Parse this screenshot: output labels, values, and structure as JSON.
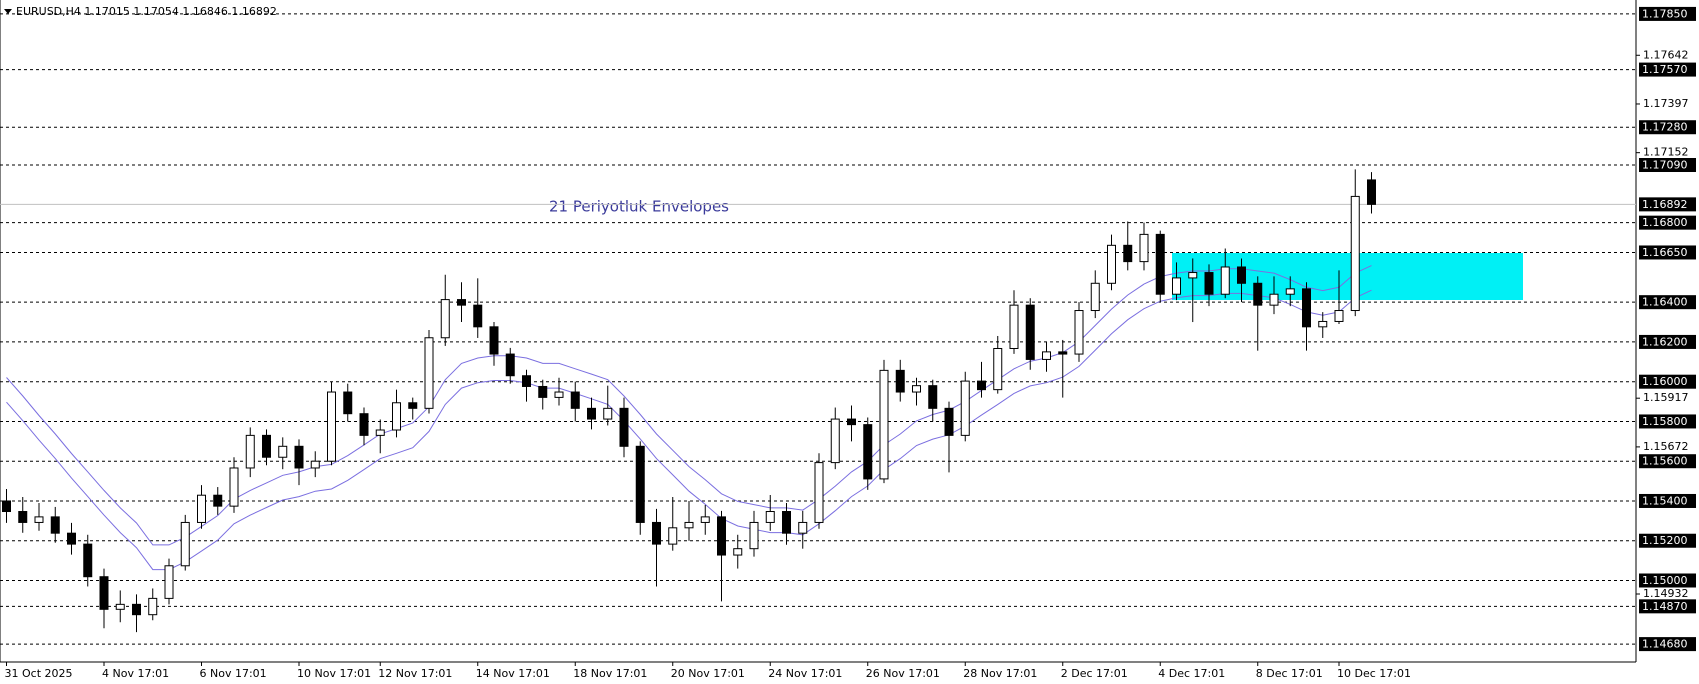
{
  "chart_data": {
    "type": "candlestick",
    "title": "EURUSD,H4  1.17015 1.17054 1.16846 1.16892",
    "annotation": "21 Periyotluk Envelopes",
    "categories": [
      "31 Oct 2025",
      null,
      null,
      null,
      null,
      null,
      "4 Nov 17:01",
      null,
      null,
      null,
      null,
      null,
      "6 Nov 17:01",
      null,
      null,
      null,
      null,
      null,
      "10 Nov 17:01",
      null,
      null,
      null,
      null,
      "12 Nov 17:01",
      null,
      null,
      null,
      null,
      null,
      "14 Nov 17:01",
      null,
      null,
      null,
      null,
      null,
      "18 Nov 17:01",
      null,
      null,
      null,
      null,
      null,
      "20 Nov 17:01",
      null,
      null,
      null,
      null,
      null,
      "24 Nov 17:01",
      null,
      null,
      null,
      null,
      null,
      "26 Nov 17:01",
      null,
      null,
      null,
      null,
      null,
      "28 Nov 17:01",
      null,
      null,
      null,
      null,
      null,
      "2 Dec 17:01",
      null,
      null,
      null,
      null,
      null,
      "4 Dec 17:01",
      null,
      null,
      null,
      null,
      null,
      "8 Dec 17:01",
      null,
      null,
      null,
      null,
      "10 Dec 17:01",
      null,
      null
    ],
    "open": [
      1.154,
      1.15347,
      1.15292,
      1.1532,
      1.15238,
      1.15183,
      1.15019,
      1.14855,
      1.1488,
      1.14828,
      1.1491,
      1.15074,
      1.15292,
      1.15429,
      1.15374,
      1.15566,
      1.1573,
      1.1562,
      1.15675,
      1.15566,
      1.156,
      1.15948,
      1.15839,
      1.1573,
      1.15757,
      1.15894,
      1.15866,
      1.16221,
      1.16413,
      1.16385,
      1.16276,
      1.16139,
      1.1603,
      1.15976,
      1.15921,
      1.15948,
      1.15866,
      1.15812,
      1.15866,
      1.15675,
      1.15292,
      1.15183,
      1.15265,
      1.15292,
      1.1532,
      1.15128,
      1.1516,
      1.15292,
      1.15347,
      1.15238,
      1.15292,
      1.15593,
      1.15812,
      1.15784,
      1.15511,
      1.16057,
      1.15948,
      1.1598,
      1.15866,
      1.1573,
      1.16003,
      1.1596,
      1.16167,
      1.16385,
      1.16112,
      1.1615,
      1.16139,
      1.16358,
      1.16495,
      1.16686,
      1.16604,
      1.16741,
      1.1644,
      1.16522,
      1.16549,
      1.1644,
      1.16577,
      1.16495,
      1.16385,
      1.1644,
      1.16467,
      1.16276,
      1.16303,
      1.16358,
      1.17015
    ],
    "high": [
      1.1546,
      1.1542,
      1.1539,
      1.1537,
      1.1529,
      1.1523,
      1.1506,
      1.1495,
      1.1493,
      1.1496,
      1.1511,
      1.1533,
      1.1548,
      1.1547,
      1.1562,
      1.1577,
      1.1576,
      1.1572,
      1.1571,
      1.1565,
      1.16,
      1.1599,
      1.1587,
      1.1581,
      1.1596,
      1.1592,
      1.1626,
      1.16538,
      1.165,
      1.1652,
      1.163,
      1.1617,
      1.1606,
      1.1601,
      1.1602,
      1.16,
      1.1592,
      1.1598,
      1.1592,
      1.157,
      1.1536,
      1.1542,
      1.154,
      1.1538,
      1.1535,
      1.1523,
      1.1535,
      1.1543,
      1.1539,
      1.1535,
      1.1564,
      1.1587,
      1.1588,
      1.1582,
      1.1611,
      1.1611,
      1.1602,
      1.1601,
      1.159,
      1.1605,
      1.161,
      1.1623,
      1.1646,
      1.1642,
      1.162,
      1.1621,
      1.164,
      1.1656,
      1.1674,
      1.16806,
      1.168,
      1.1676,
      1.166,
      1.1662,
      1.1659,
      1.1667,
      1.1662,
      1.1653,
      1.1653,
      1.1653,
      1.165,
      1.1635,
      1.1656,
      1.17068,
      1.17054
    ],
    "low": [
      1.1529,
      1.1524,
      1.1525,
      1.1519,
      1.1513,
      1.1497,
      1.1476,
      1.1479,
      1.1474,
      1.148,
      1.1488,
      1.1505,
      1.1526,
      1.1533,
      1.1534,
      1.1552,
      1.1558,
      1.1556,
      1.1548,
      1.1552,
      1.1558,
      1.158,
      1.1568,
      1.1564,
      1.1572,
      1.1581,
      1.1584,
      1.1618,
      1.163,
      1.1622,
      1.1608,
      1.1599,
      1.159,
      1.1586,
      1.1588,
      1.158,
      1.1576,
      1.1578,
      1.1562,
      1.1523,
      1.1497,
      1.1515,
      1.152,
      1.1523,
      1.14895,
      1.1506,
      1.1512,
      1.1525,
      1.1518,
      1.1516,
      1.1526,
      1.1556,
      1.157,
      1.15456,
      1.1549,
      1.159,
      1.1588,
      1.158,
      1.15544,
      1.157,
      1.1592,
      1.1594,
      1.1614,
      1.1606,
      1.1605,
      1.1592,
      1.161,
      1.1632,
      1.1646,
      1.1656,
      1.1656,
      1.164,
      1.1641,
      1.163,
      1.1638,
      1.1642,
      1.164,
      1.16156,
      1.1634,
      1.1638,
      1.16156,
      1.1622,
      1.1629,
      1.1633,
      1.16846
    ],
    "close": [
      1.15347,
      1.15292,
      1.1532,
      1.15238,
      1.15183,
      1.15019,
      1.14855,
      1.1488,
      1.14828,
      1.1491,
      1.15074,
      1.15292,
      1.15429,
      1.15374,
      1.15566,
      1.1573,
      1.1562,
      1.15675,
      1.15566,
      1.156,
      1.15948,
      1.15839,
      1.1573,
      1.15757,
      1.15894,
      1.15866,
      1.16221,
      1.16413,
      1.16385,
      1.16276,
      1.16139,
      1.1603,
      1.15976,
      1.15921,
      1.15948,
      1.15866,
      1.15812,
      1.15866,
      1.15675,
      1.15292,
      1.15183,
      1.15265,
      1.15292,
      1.1532,
      1.15128,
      1.1516,
      1.15292,
      1.15347,
      1.15238,
      1.15292,
      1.15593,
      1.15812,
      1.15784,
      1.15511,
      1.16057,
      1.15948,
      1.1598,
      1.15866,
      1.1573,
      1.16003,
      1.1596,
      1.16167,
      1.16385,
      1.16112,
      1.1615,
      1.16139,
      1.16358,
      1.16495,
      1.16686,
      1.16604,
      1.16741,
      1.1644,
      1.16522,
      1.16549,
      1.1644,
      1.16577,
      1.16495,
      1.16385,
      1.1644,
      1.16467,
      1.16276,
      1.16303,
      1.16358,
      1.16932,
      1.16892
    ],
    "envelope_upper": [
      1.16021,
      1.15928,
      1.1583,
      1.15737,
      1.15639,
      1.15546,
      1.15453,
      1.15365,
      1.15289,
      1.15179,
      1.15179,
      1.15218,
      1.15272,
      1.15327,
      1.15409,
      1.15453,
      1.15491,
      1.15529,
      1.15546,
      1.15573,
      1.15584,
      1.15628,
      1.15682,
      1.15737,
      1.15764,
      1.15792,
      1.15874,
      1.1601,
      1.16092,
      1.16119,
      1.1613,
      1.1613,
      1.16119,
      1.16092,
      1.16092,
      1.16065,
      1.16038,
      1.1601,
      1.15928,
      1.15835,
      1.15737,
      1.15655,
      1.15573,
      1.15507,
      1.15436,
      1.15398,
      1.15382,
      1.15365,
      1.15365,
      1.15354,
      1.15409,
      1.15475,
      1.15546,
      1.156,
      1.15682,
      1.15737,
      1.15803,
      1.15835,
      1.15857,
      1.15901,
      1.15956,
      1.1601,
      1.16065,
      1.16103,
      1.16119,
      1.16147,
      1.16201,
      1.16283,
      1.16365,
      1.16436,
      1.16491,
      1.16529,
      1.16546,
      1.16557,
      1.16557,
      1.16568,
      1.16568,
      1.16557,
      1.16546,
      1.16513,
      1.16475,
      1.16458,
      1.16475,
      1.16546,
      1.16584
    ],
    "envelope_lower": [
      1.15897,
      1.15804,
      1.15706,
      1.15613,
      1.15515,
      1.15422,
      1.15329,
      1.15241,
      1.15165,
      1.15055,
      1.15055,
      1.15094,
      1.15148,
      1.15203,
      1.15285,
      1.15329,
      1.15367,
      1.15405,
      1.15422,
      1.15449,
      1.1546,
      1.15504,
      1.15558,
      1.15613,
      1.1564,
      1.15668,
      1.1575,
      1.15886,
      1.15968,
      1.15995,
      1.16006,
      1.16006,
      1.15995,
      1.15968,
      1.15968,
      1.15941,
      1.15914,
      1.15886,
      1.15804,
      1.15711,
      1.15613,
      1.15531,
      1.15449,
      1.15383,
      1.15312,
      1.15274,
      1.15258,
      1.15241,
      1.15241,
      1.1523,
      1.15285,
      1.15351,
      1.15422,
      1.15476,
      1.15558,
      1.15613,
      1.15679,
      1.15711,
      1.15733,
      1.15777,
      1.15832,
      1.15886,
      1.15941,
      1.15979,
      1.15995,
      1.16023,
      1.16077,
      1.16159,
      1.16241,
      1.16312,
      1.16367,
      1.16405,
      1.16422,
      1.16433,
      1.16433,
      1.16444,
      1.16444,
      1.16433,
      1.16422,
      1.16389,
      1.16351,
      1.16334,
      1.16351,
      1.16422,
      1.1646
    ],
    "envelope_color": "#7b6fe0",
    "ylim": [
      1.1459,
      1.1792
    ],
    "yticks": [
      1.17642,
      1.17397,
      1.17152,
      1.15917,
      1.15672,
      1.14932
    ],
    "levels": [
      {
        "value": 1.1785,
        "label": "1.17850"
      },
      {
        "value": 1.1757,
        "label": "1.17570"
      },
      {
        "value": 1.1728,
        "label": "1.17280"
      },
      {
        "value": 1.1709,
        "label": "1.17090"
      },
      {
        "value": 1.168,
        "label": "1.16800"
      },
      {
        "value": 1.1665,
        "label": "1.16650"
      },
      {
        "value": 1.164,
        "label": "1.16400"
      },
      {
        "value": 1.162,
        "label": "1.16200"
      },
      {
        "value": 1.16,
        "label": "1.16000"
      },
      {
        "value": 1.158,
        "label": "1.15800"
      },
      {
        "value": 1.156,
        "label": "1.15600"
      },
      {
        "value": 1.154,
        "label": "1.15400"
      },
      {
        "value": 1.152,
        "label": "1.15200"
      },
      {
        "value": 1.15,
        "label": "1.15000"
      },
      {
        "value": 1.1487,
        "label": "1.14870"
      },
      {
        "value": 1.1468,
        "label": "1.14680"
      }
    ],
    "current_price": 1.16892
  }
}
